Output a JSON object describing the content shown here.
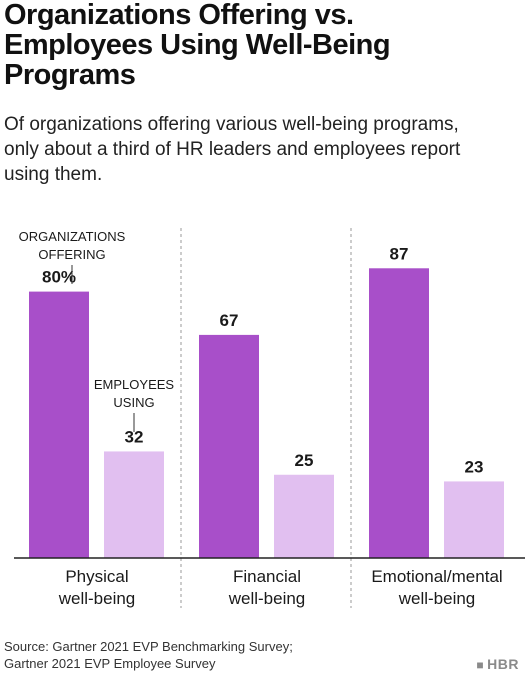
{
  "title_lines": [
    "Organizations Offering vs.",
    "Employees Using Well-Being",
    "Programs"
  ],
  "subtitle_lines": [
    "Of organizations offering various well-being programs,",
    "only about a third of HR leaders and employees report",
    "using them."
  ],
  "source_lines": [
    "Source: Gartner 2021 EVP Benchmarking Survey;",
    "Gartner 2021 EVP Employee Survey"
  ],
  "logo": "HBR",
  "colors": {
    "offering": "#a84fc9",
    "using": "#e1bff0",
    "gridline": "#999999",
    "axis": "#222222"
  },
  "chart_data": {
    "type": "bar",
    "categories": [
      [
        "Physical",
        "well-being"
      ],
      [
        "Financial",
        "well-being"
      ],
      [
        "Emotional/mental",
        "well-being"
      ]
    ],
    "series": [
      {
        "name": "ORGANIZATIONS OFFERING",
        "values": [
          80,
          67,
          87
        ]
      },
      {
        "name": "EMPLOYEES USING",
        "values": [
          32,
          25,
          23
        ]
      }
    ],
    "data_labels": [
      [
        "80%",
        "67",
        "87"
      ],
      [
        "32",
        "25",
        "23"
      ]
    ],
    "series_annotations": [
      [
        "ORGANIZATIONS",
        "OFFERING"
      ],
      [
        "EMPLOYEES",
        "USING"
      ]
    ],
    "ylim": [
      0,
      100
    ],
    "grid": false
  }
}
